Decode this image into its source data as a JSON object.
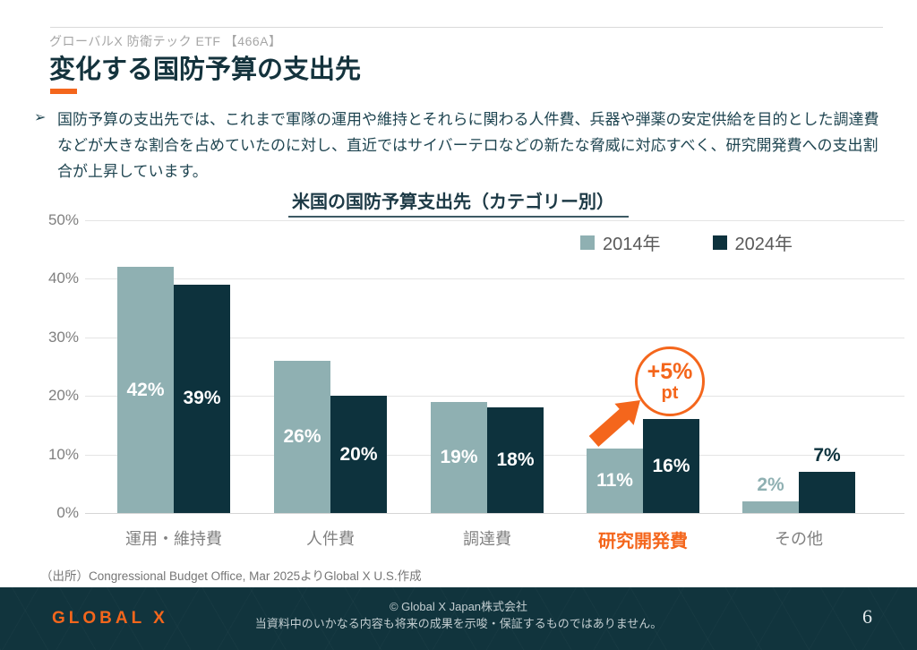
{
  "header": {
    "product_label": "グローバルX 防衛テック ETF 【466A】",
    "title": "変化する国防予算の支出先"
  },
  "intro": {
    "bullet": "➢",
    "text": "国防予算の支出先では、これまで軍隊の運用や維持とそれらに関わる人件費、兵器や弾薬の安定供給を目的とした調達費などが大きな割合を占めていたのに対し、直近ではサイバーテロなどの新たな脅威に対応すべく、研究開発費への支出割合が上昇しています。"
  },
  "chart_data": {
    "type": "bar",
    "title": "米国の国防予算支出先（カテゴリー別）",
    "categories": [
      "運用・維持費",
      "人件費",
      "調達費",
      "研究開発費",
      "その他"
    ],
    "series": [
      {
        "name": "2014年",
        "color": "#8fb0b2",
        "values": [
          42,
          26,
          19,
          11,
          2
        ]
      },
      {
        "name": "2024年",
        "color": "#0d323d",
        "values": [
          39,
          20,
          18,
          16,
          7
        ]
      }
    ],
    "y_ticks": [
      "50%",
      "40%",
      "30%",
      "20%",
      "10%",
      "0%"
    ],
    "ylim": [
      0,
      50
    ],
    "value_suffix": "%",
    "grid": true,
    "legend_position": "top-right",
    "highlight_index": 3,
    "outside_label_index": 4,
    "annotation": {
      "line1": "+5%",
      "line2": "pt",
      "target_category": "研究開発費",
      "color": "#f4661c"
    }
  },
  "source": {
    "text": "（出所）Congressional Budget Office, Mar 2025よりGlobal X U.S.作成"
  },
  "footer": {
    "logo_text": "GLOBAL X",
    "copyright": "© Global X Japan株式会社",
    "disclaimer": "当資料中のいかなる内容も将来の成果を示唆・保証するものではありません。",
    "page_number": "6"
  },
  "colors": {
    "accent_orange": "#f4661c",
    "series_2014": "#8fb0b2",
    "series_2024": "#0d323d",
    "title_dark_teal": "#14333d",
    "footer_background": "#11343d"
  }
}
